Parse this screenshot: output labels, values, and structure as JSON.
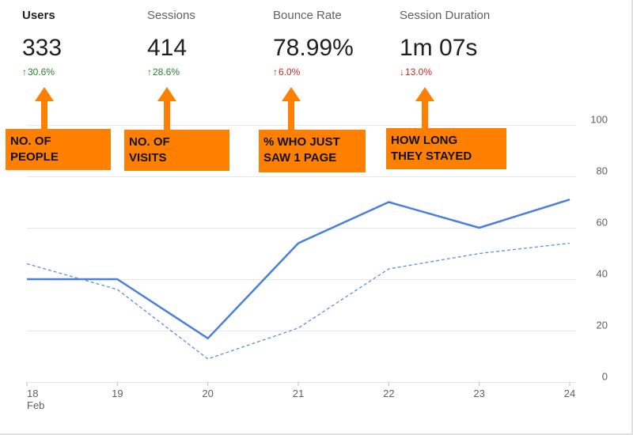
{
  "metrics": [
    {
      "label": "Users",
      "value": "333",
      "change": "30.6%",
      "direction": "up"
    },
    {
      "label": "Sessions",
      "value": "414",
      "change": "28.6%",
      "direction": "up"
    },
    {
      "label": "Bounce Rate",
      "value": "78.99%",
      "change": "6.0%",
      "direction": "up"
    },
    {
      "label": "Session Duration",
      "value": "1m 07s",
      "change": "13.0%",
      "direction": "down"
    }
  ],
  "callouts": [
    "No. OF\nPEOPLE",
    "No. OF\nVISITS",
    "% WHO JUST\nSAW 1 PAGE",
    "HOW LONG\nTHEY STAYED"
  ],
  "colors": {
    "primary_line": "#4a7fe0",
    "secondary_line": "#5b8ee6",
    "callout": "#ff8000",
    "up": "#2e7d32",
    "down": "#c62828",
    "grid": "#e6e6e6"
  },
  "chart_data": {
    "type": "line",
    "categories": [
      "18",
      "19",
      "20",
      "21",
      "22",
      "23",
      "24"
    ],
    "x_month_label": "Feb",
    "y_ticks": [
      0,
      20,
      40,
      60,
      80,
      100
    ],
    "ylim": [
      0,
      100
    ],
    "series": [
      {
        "values": [
          40,
          40,
          17,
          54,
          70,
          60,
          71
        ],
        "style": "solid"
      },
      {
        "values": [
          46,
          36,
          9,
          21,
          44,
          50,
          54
        ],
        "style": "dashed"
      }
    ],
    "grid": true
  }
}
